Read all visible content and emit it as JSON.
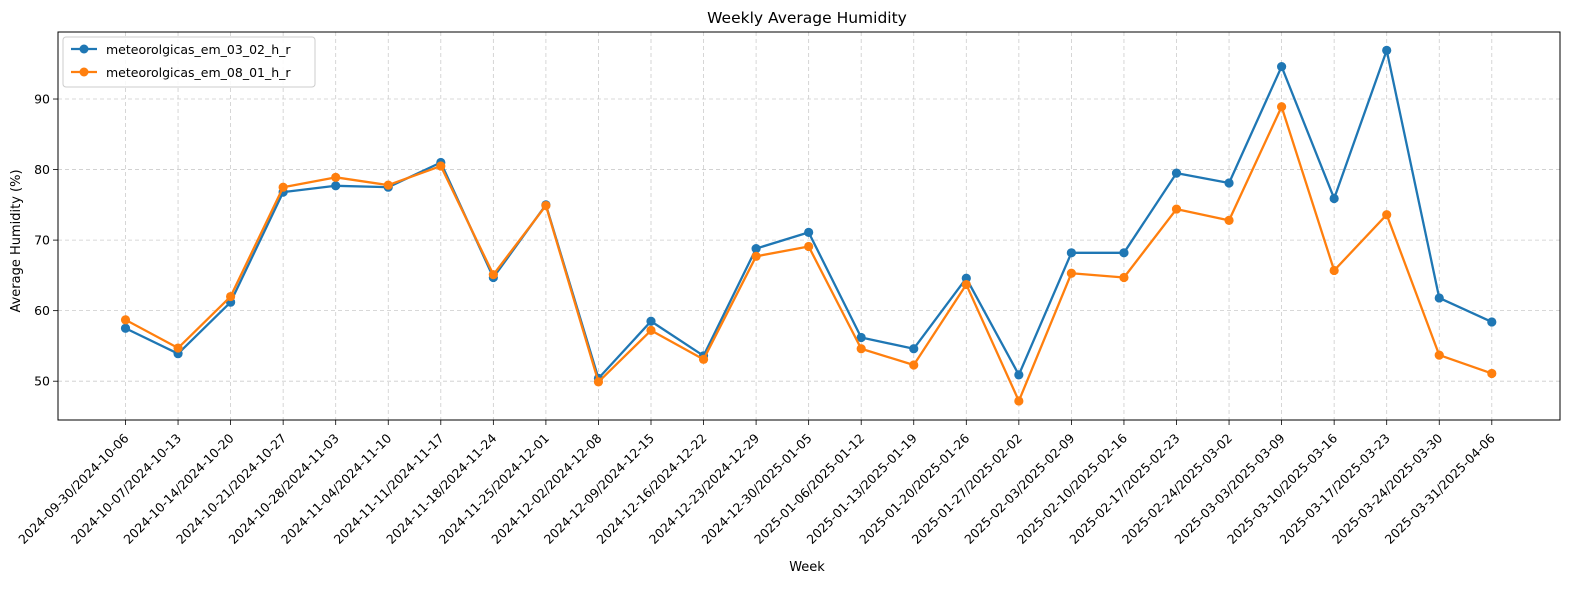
{
  "chart_data": {
    "type": "line",
    "title": "Weekly Average Humidity",
    "xlabel": "Week",
    "ylabel": "Average Humidity (%)",
    "ylim": [
      44.5,
      99.5
    ],
    "yticks": [
      50,
      60,
      70,
      80,
      90
    ],
    "grid": true,
    "legend_position": "top-left",
    "categories": [
      "2024-09-30/2024-10-06",
      "2024-10-07/2024-10-13",
      "2024-10-14/2024-10-20",
      "2024-10-21/2024-10-27",
      "2024-10-28/2024-11-03",
      "2024-11-04/2024-11-10",
      "2024-11-11/2024-11-17",
      "2024-11-18/2024-11-24",
      "2024-11-25/2024-12-01",
      "2024-12-02/2024-12-08",
      "2024-12-09/2024-12-15",
      "2024-12-16/2024-12-22",
      "2024-12-23/2024-12-29",
      "2024-12-30/2025-01-05",
      "2025-01-06/2025-01-12",
      "2025-01-13/2025-01-19",
      "2025-01-20/2025-01-26",
      "2025-01-27/2025-02-02",
      "2025-02-03/2025-02-09",
      "2025-02-10/2025-02-16",
      "2025-02-17/2025-02-23",
      "2025-02-24/2025-03-02",
      "2025-03-03/2025-03-09",
      "2025-03-10/2025-03-16",
      "2025-03-17/2025-03-23",
      "2025-03-24/2025-03-30",
      "2025-03-31/2025-04-06"
    ],
    "series": [
      {
        "name": "meteorolgicas_em_03_02_h_r",
        "color": "#1f77b4",
        "values": [
          57.5,
          53.9,
          61.2,
          76.8,
          77.7,
          77.5,
          81.0,
          64.7,
          75.0,
          50.4,
          58.5,
          53.6,
          68.8,
          71.1,
          56.2,
          54.6,
          64.6,
          50.9,
          68.2,
          68.2,
          79.5,
          78.1,
          94.6,
          75.9,
          96.9,
          61.8,
          58.4
        ]
      },
      {
        "name": "meteorolgicas_em_08_01_h_r",
        "color": "#ff7f0e",
        "values": [
          58.7,
          54.7,
          62.0,
          77.5,
          78.9,
          77.8,
          80.5,
          65.1,
          74.9,
          49.9,
          57.2,
          53.1,
          67.7,
          69.1,
          54.6,
          52.3,
          63.7,
          47.2,
          65.3,
          64.7,
          74.4,
          72.8,
          88.9,
          65.7,
          73.6,
          53.7,
          51.1
        ]
      }
    ]
  }
}
